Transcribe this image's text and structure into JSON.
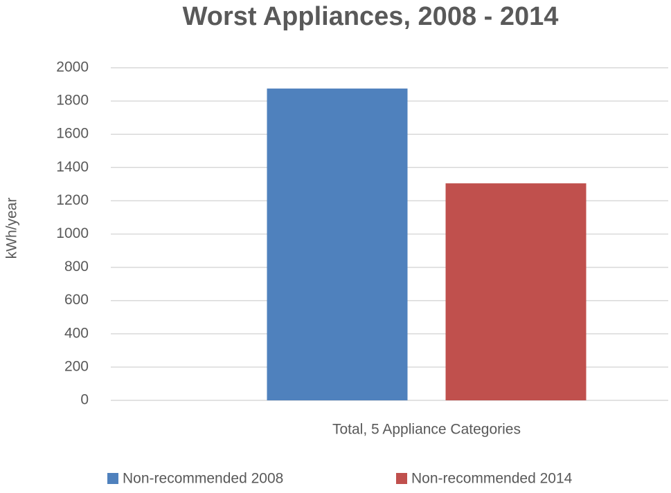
{
  "chart_data": {
    "type": "bar",
    "title": "Worst Appliances, 2008 - 2014",
    "y_label": "kWh/year",
    "categories": [
      "Total, 5 Appliance Categories"
    ],
    "series": [
      {
        "name": "Non-recommended 2008",
        "color": "#4f81bd",
        "values": [
          1875
        ]
      },
      {
        "name": "Non-recommended 2014",
        "color": "#c0504d",
        "values": [
          1305
        ]
      }
    ],
    "ylim": [
      0,
      2000
    ],
    "yticks": [
      0,
      200,
      400,
      600,
      800,
      1000,
      1200,
      1400,
      1600,
      1800,
      2000
    ],
    "grid": true,
    "legend": "bottom"
  }
}
